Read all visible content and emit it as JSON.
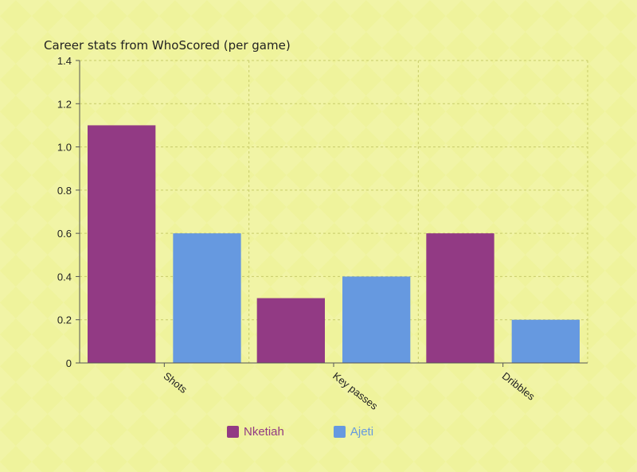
{
  "chart_data": {
    "type": "bar",
    "title": "Career stats from WhoScored (per game)",
    "categories": [
      "Shots",
      "Key passes",
      "Dribbles"
    ],
    "series": [
      {
        "name": "Nketiah",
        "values": [
          1.1,
          0.3,
          0.6
        ],
        "color": "#923a84"
      },
      {
        "name": "Ajeti",
        "values": [
          0.6,
          0.4,
          0.2
        ],
        "color": "#6699e0"
      }
    ],
    "ylim": [
      0,
      1.4
    ],
    "yticks": [
      "0",
      "0.2",
      "0.4",
      "0.6",
      "0.8",
      "1.0",
      "1.2",
      "1.4"
    ],
    "grid": true,
    "legend_position": "bottom"
  }
}
